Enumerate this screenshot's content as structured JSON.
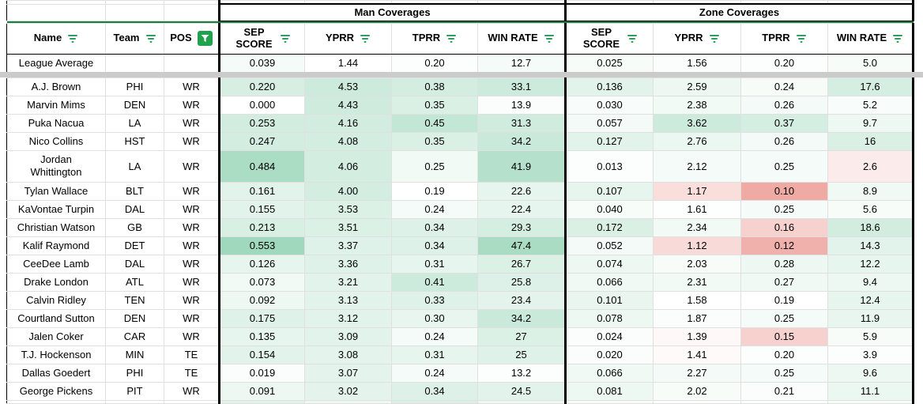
{
  "sheet": {
    "group_headers": {
      "man": "Man Coverages",
      "zone": "Zone Coverages"
    },
    "columns": {
      "name": "Name",
      "team": "Team",
      "pos": "POS",
      "man": [
        "SEP SCORE",
        "YPRR",
        "TPRR",
        "WIN RATE"
      ],
      "zone": [
        "SEP SCORE",
        "YPRR",
        "TPRR",
        "WIN RATE"
      ]
    },
    "league_average": {
      "name": "League Average",
      "team": "",
      "pos": "",
      "man": [
        "0.039",
        "1.44",
        "0.20",
        "12.7"
      ],
      "man_tints": [
        0.06,
        0,
        0.02,
        0.06
      ],
      "zone": [
        "0.025",
        "1.56",
        "0.20",
        "5.0"
      ],
      "zone_tints": [
        0.05,
        0.03,
        0.02,
        0.05
      ]
    },
    "players": [
      {
        "name": "A.J. Brown",
        "team": "PHI",
        "pos": "WR",
        "man": [
          "0.220",
          "4.53",
          "0.38",
          "33.1"
        ],
        "man_tints": [
          0.24,
          0.3,
          0.26,
          0.3
        ],
        "zone": [
          "0.136",
          "2.59",
          "0.24",
          "17.6"
        ],
        "zone_tints": [
          0.18,
          0.1,
          0.05,
          0.25
        ]
      },
      {
        "name": "Marvin Mims",
        "team": "DEN",
        "pos": "WR",
        "man": [
          "0.000",
          "4.43",
          "0.35",
          "13.9"
        ],
        "man_tints": [
          0,
          0.29,
          0.22,
          0.03
        ],
        "zone": [
          "0.030",
          "2.38",
          "0.26",
          "5.2"
        ],
        "zone_tints": [
          0.04,
          0.08,
          0.07,
          0.04
        ]
      },
      {
        "name": "Puka Nacua",
        "team": "LA",
        "pos": "WR",
        "man": [
          "0.253",
          "4.16",
          "0.45",
          "31.3"
        ],
        "man_tints": [
          0.27,
          0.27,
          0.36,
          0.28
        ],
        "zone": [
          "0.057",
          "3.62",
          "0.37",
          "9.7"
        ],
        "zone_tints": [
          0.07,
          0.3,
          0.25,
          0.1
        ]
      },
      {
        "name": "Nico Collins",
        "team": "HST",
        "pos": "WR",
        "man": [
          "0.247",
          "4.08",
          "0.35",
          "34.2"
        ],
        "man_tints": [
          0.26,
          0.26,
          0.22,
          0.32
        ],
        "zone": [
          "0.127",
          "2.76",
          "0.26",
          "16"
        ],
        "zone_tints": [
          0.17,
          0.12,
          0.07,
          0.22
        ]
      },
      {
        "name": "Jordan Whittington",
        "team": "LA",
        "pos": "WR",
        "man": [
          "0.484",
          "4.06",
          "0.25",
          "41.9"
        ],
        "man_tints": [
          0.5,
          0.26,
          0.08,
          0.44
        ],
        "zone": [
          "0.013",
          "2.12",
          "0.25",
          "2.6"
        ],
        "zone_tints": [
          0.02,
          0.06,
          0.06,
          -0.15
        ]
      },
      {
        "name": "Tylan Wallace",
        "team": "BLT",
        "pos": "WR",
        "man": [
          "0.161",
          "4.00",
          "0.19",
          "22.6"
        ],
        "man_tints": [
          0.17,
          0.26,
          0,
          0.15
        ],
        "zone": [
          "0.107",
          "1.17",
          "0.10",
          "8.9"
        ],
        "zone_tints": [
          0.14,
          -0.25,
          -0.65,
          0.09
        ]
      },
      {
        "name": "KaVontae Turpin",
        "team": "DAL",
        "pos": "WR",
        "man": [
          "0.155",
          "3.53",
          "0.24",
          "22.4"
        ],
        "man_tints": [
          0.17,
          0.21,
          0.06,
          0.15
        ],
        "zone": [
          "0.040",
          "1.61",
          "0.25",
          "5.6"
        ],
        "zone_tints": [
          0.05,
          0.01,
          0.06,
          0.05
        ]
      },
      {
        "name": "Christian Watson",
        "team": "GB",
        "pos": "WR",
        "man": [
          "0.213",
          "3.51",
          "0.34",
          "29.3"
        ],
        "man_tints": [
          0.23,
          0.21,
          0.2,
          0.25
        ],
        "zone": [
          "0.172",
          "2.34",
          "0.16",
          "18.6"
        ],
        "zone_tints": [
          0.22,
          0.08,
          -0.35,
          0.27
        ]
      },
      {
        "name": "Kalif Raymond",
        "team": "DET",
        "pos": "WR",
        "man": [
          "0.553",
          "3.37",
          "0.34",
          "47.4"
        ],
        "man_tints": [
          0.57,
          0.19,
          0.2,
          0.51
        ],
        "zone": [
          "0.052",
          "1.12",
          "0.12",
          "14.3"
        ],
        "zone_tints": [
          0.07,
          -0.28,
          -0.6,
          0.18
        ]
      },
      {
        "name": "CeeDee Lamb",
        "team": "DAL",
        "pos": "WR",
        "man": [
          "0.126",
          "3.36",
          "0.31",
          "26.7"
        ],
        "man_tints": [
          0.14,
          0.19,
          0.15,
          0.21
        ],
        "zone": [
          "0.074",
          "2.03",
          "0.28",
          "12.2"
        ],
        "zone_tints": [
          0.1,
          0.05,
          0.1,
          0.14
        ]
      },
      {
        "name": "Drake London",
        "team": "ATL",
        "pos": "WR",
        "man": [
          "0.073",
          "3.21",
          "0.41",
          "25.8"
        ],
        "man_tints": [
          0.08,
          0.18,
          0.3,
          0.2
        ],
        "zone": [
          "0.066",
          "2.31",
          "0.27",
          "9.4"
        ],
        "zone_tints": [
          0.09,
          0.08,
          0.09,
          0.1
        ]
      },
      {
        "name": "Calvin Ridley",
        "team": "TEN",
        "pos": "WR",
        "man": [
          "0.092",
          "3.13",
          "0.33",
          "23.4"
        ],
        "man_tints": [
          0.1,
          0.17,
          0.19,
          0.16
        ],
        "zone": [
          "0.101",
          "1.58",
          "0.19",
          "12.4"
        ],
        "zone_tints": [
          0.13,
          0,
          0,
          0.14
        ]
      },
      {
        "name": "Courtland Sutton",
        "team": "DEN",
        "pos": "WR",
        "man": [
          "0.175",
          "3.12",
          "0.30",
          "34.2"
        ],
        "man_tints": [
          0.19,
          0.17,
          0.13,
          0.32
        ],
        "zone": [
          "0.078",
          "1.87",
          "0.25",
          "11.9"
        ],
        "zone_tints": [
          0.1,
          0.03,
          0.06,
          0.13
        ]
      },
      {
        "name": "Jalen Coker",
        "team": "CAR",
        "pos": "WR",
        "man": [
          "0.135",
          "3.09",
          "0.24",
          "27"
        ],
        "man_tints": [
          0.15,
          0.17,
          0.06,
          0.21
        ],
        "zone": [
          "0.024",
          "1.39",
          "0.15",
          "5.9"
        ],
        "zone_tints": [
          0.03,
          -0.05,
          -0.35,
          0.05
        ]
      },
      {
        "name": "T.J. Hockenson",
        "team": "MIN",
        "pos": "TE",
        "man": [
          "0.154",
          "3.08",
          "0.31",
          "25"
        ],
        "man_tints": [
          0.17,
          0.16,
          0.15,
          0.19
        ],
        "zone": [
          "0.020",
          "1.41",
          "0.20",
          "3.9"
        ],
        "zone_tints": [
          0.03,
          -0.04,
          0.02,
          0.02
        ]
      },
      {
        "name": "Dallas Goedert",
        "team": "PHI",
        "pos": "TE",
        "man": [
          "0.019",
          "3.07",
          "0.24",
          "13.2"
        ],
        "man_tints": [
          0.03,
          0.16,
          0.06,
          0.02
        ],
        "zone": [
          "0.066",
          "2.27",
          "0.25",
          "9.6"
        ],
        "zone_tints": [
          0.09,
          0.07,
          0.06,
          0.1
        ]
      },
      {
        "name": "George Pickens",
        "team": "PIT",
        "pos": "WR",
        "man": [
          "0.091",
          "3.02",
          "0.34",
          "24.5"
        ],
        "man_tints": [
          0.1,
          0.16,
          0.2,
          0.18
        ],
        "zone": [
          "0.081",
          "2.02",
          "0.21",
          "11.1"
        ],
        "zone_tints": [
          0.11,
          0.05,
          0.03,
          0.12
        ]
      }
    ],
    "bottom_partial_row": {
      "man_tints": [
        0.18,
        0.1,
        0.22,
        0.1
      ],
      "zone_tints": [
        0.05,
        0.02,
        0.02,
        0.05
      ]
    },
    "icons": {
      "header_filter": "filter-lines-icon",
      "pos_filter": "filter-funnel-active-icon"
    },
    "colors": {
      "positive_scale": "#57bb8a",
      "negative_scale": "#e67c73",
      "filter_icon_green": "#2e9e5e",
      "active_filter_green": "#1fa14e",
      "frozen_line_green": "#188038",
      "separator_gray": "#cbcbcb",
      "gridline": "#e0e0e0"
    }
  }
}
